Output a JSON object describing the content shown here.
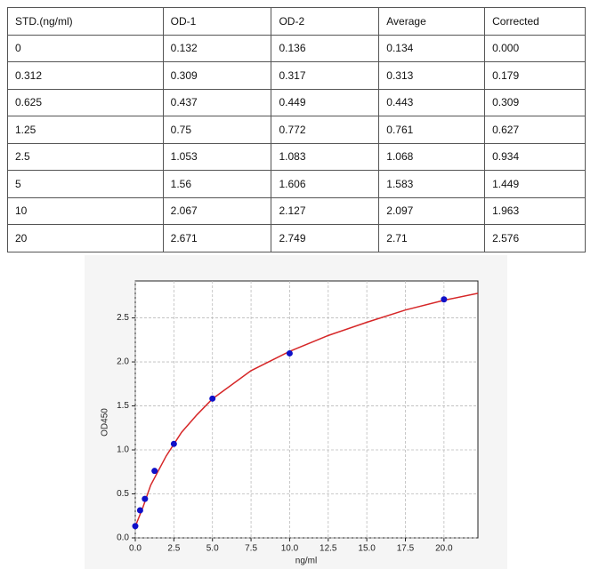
{
  "table": {
    "header": [
      "STD.(ng/ml)",
      "OD-1",
      "OD-2",
      "Average",
      "Corrected"
    ],
    "rows": [
      [
        "0",
        "0.132",
        "0.136",
        "0.134",
        "0.000"
      ],
      [
        "0.312",
        "0.309",
        "0.317",
        "0.313",
        "0.179"
      ],
      [
        "0.625",
        "0.437",
        "0.449",
        "0.443",
        "0.309"
      ],
      [
        "1.25",
        "0.75",
        "0.772",
        "0.761",
        "0.627"
      ],
      [
        "2.5",
        "1.053",
        "1.083",
        "1.068",
        "0.934"
      ],
      [
        "5",
        "1.56",
        "1.606",
        "1.583",
        "1.449"
      ],
      [
        "10",
        "2.067",
        "2.127",
        "2.097",
        "1.963"
      ],
      [
        "20",
        "2.671",
        "2.749",
        "2.71",
        "2.576"
      ]
    ]
  },
  "chart_data": {
    "type": "scatter",
    "xlabel": "ng/ml",
    "ylabel": "OD450",
    "xlim": [
      0,
      22.2
    ],
    "ylim": [
      0,
      2.92
    ],
    "xticks": [
      {
        "value": 0,
        "label": "0.0"
      },
      2.5,
      {
        "value": 5,
        "label": "5.0"
      },
      7.5,
      {
        "value": 10,
        "label": "10.0"
      },
      12.5,
      {
        "value": 15,
        "label": "15.0"
      },
      17.5,
      {
        "value": 20,
        "label": "20.0"
      }
    ],
    "yticks": [
      {
        "value": 0,
        "label": "0.0"
      },
      0.5,
      {
        "value": 1,
        "label": "1.0"
      },
      1.5,
      {
        "value": 2,
        "label": "2.0"
      },
      2.5
    ],
    "grid": true,
    "series": [
      {
        "type": "line",
        "color": "#d62728",
        "x": [
          0,
          0.5,
          1,
          2,
          3,
          4,
          5,
          7.5,
          10,
          12.5,
          15,
          17.5,
          20,
          22.2
        ],
        "values": [
          0.13,
          0.35,
          0.6,
          0.93,
          1.2,
          1.4,
          1.58,
          1.9,
          2.12,
          2.3,
          2.45,
          2.59,
          2.7,
          2.78
        ]
      },
      {
        "type": "scatter",
        "color": "#1010c8",
        "x": [
          0,
          0.312,
          0.625,
          1.25,
          2.5,
          5,
          10,
          20
        ],
        "values": [
          0.134,
          0.313,
          0.443,
          0.761,
          1.068,
          1.583,
          2.097,
          2.71
        ]
      }
    ]
  }
}
